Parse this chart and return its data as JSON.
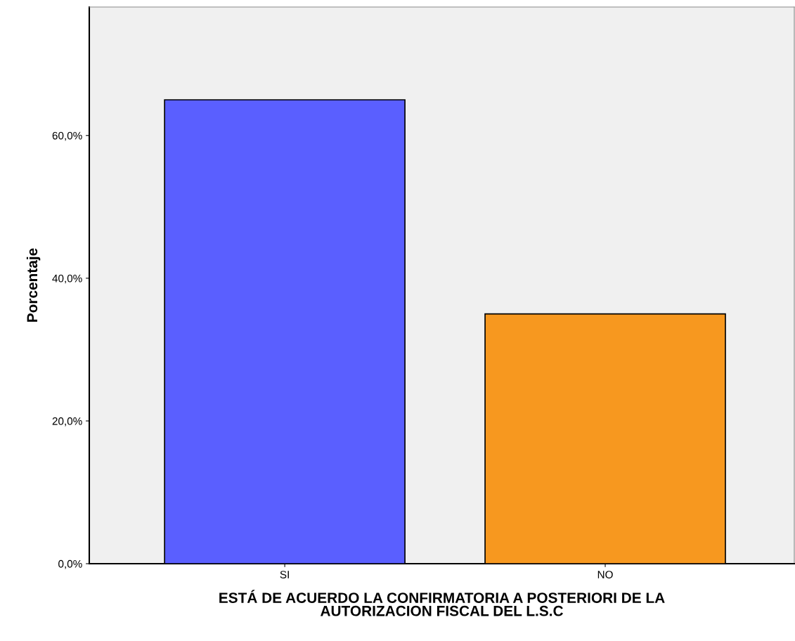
{
  "chart_data": {
    "type": "bar",
    "categories": [
      "SI",
      "NO"
    ],
    "values": [
      65,
      35
    ],
    "colors": [
      "#5a5fff",
      "#f7981f"
    ],
    "xlabel": "ESTÁ DE ACUERDO LA CONFIRMATORIA A POSTERIORI DE LA\nAUTORIZACION FISCAL DEL L.S.C",
    "ylabel": "Porcentaje",
    "ylim": [
      0,
      78
    ],
    "yticks": [
      {
        "value": 0,
        "label": "0,0%"
      },
      {
        "value": 20,
        "label": "20,0%"
      },
      {
        "value": 40,
        "label": "40,0%"
      },
      {
        "value": 60,
        "label": "60,0%"
      }
    ],
    "grid": false,
    "legend": false
  }
}
